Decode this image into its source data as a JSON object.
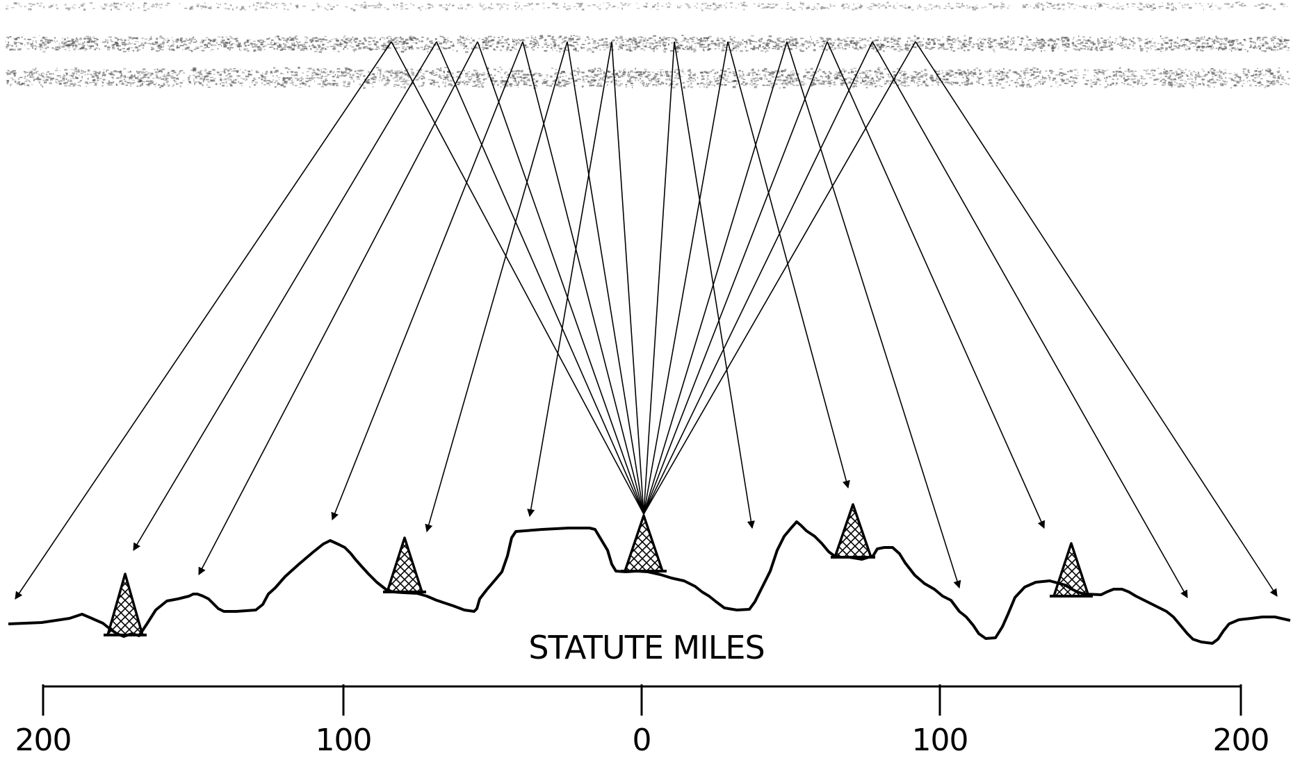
{
  "scale": {
    "title": "STATUTE MILES",
    "tick_labels": [
      "200",
      "100",
      "0",
      "100",
      "200"
    ]
  },
  "colors": {
    "ink": "#000000",
    "background": "#ffffff",
    "ionosphere": "#555555"
  }
}
